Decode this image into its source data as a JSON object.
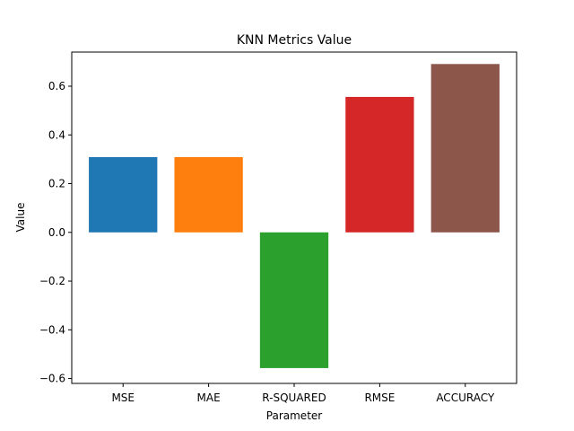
{
  "chart_data": {
    "type": "bar",
    "title": "KNN Metrics Value",
    "xlabel": "Parameter",
    "ylabel": "Value",
    "categories": [
      "MSE",
      "MAE",
      "R-SQUARED",
      "RMSE",
      "ACCURACY"
    ],
    "values": [
      0.309,
      0.309,
      -0.557,
      0.556,
      0.691
    ],
    "colors": [
      "#1f77b4",
      "#ff7f0e",
      "#2ca02c",
      "#d62728",
      "#8c564b"
    ],
    "ylim": [
      -0.62,
      0.74
    ],
    "yticks": [
      -0.6,
      -0.4,
      -0.2,
      0.0,
      0.2,
      0.4,
      0.6
    ],
    "ytick_labels": [
      "−0.6",
      "−0.4",
      "−0.2",
      "0.0",
      "0.2",
      "0.4",
      "0.6"
    ],
    "grid": false,
    "legend": false
  }
}
